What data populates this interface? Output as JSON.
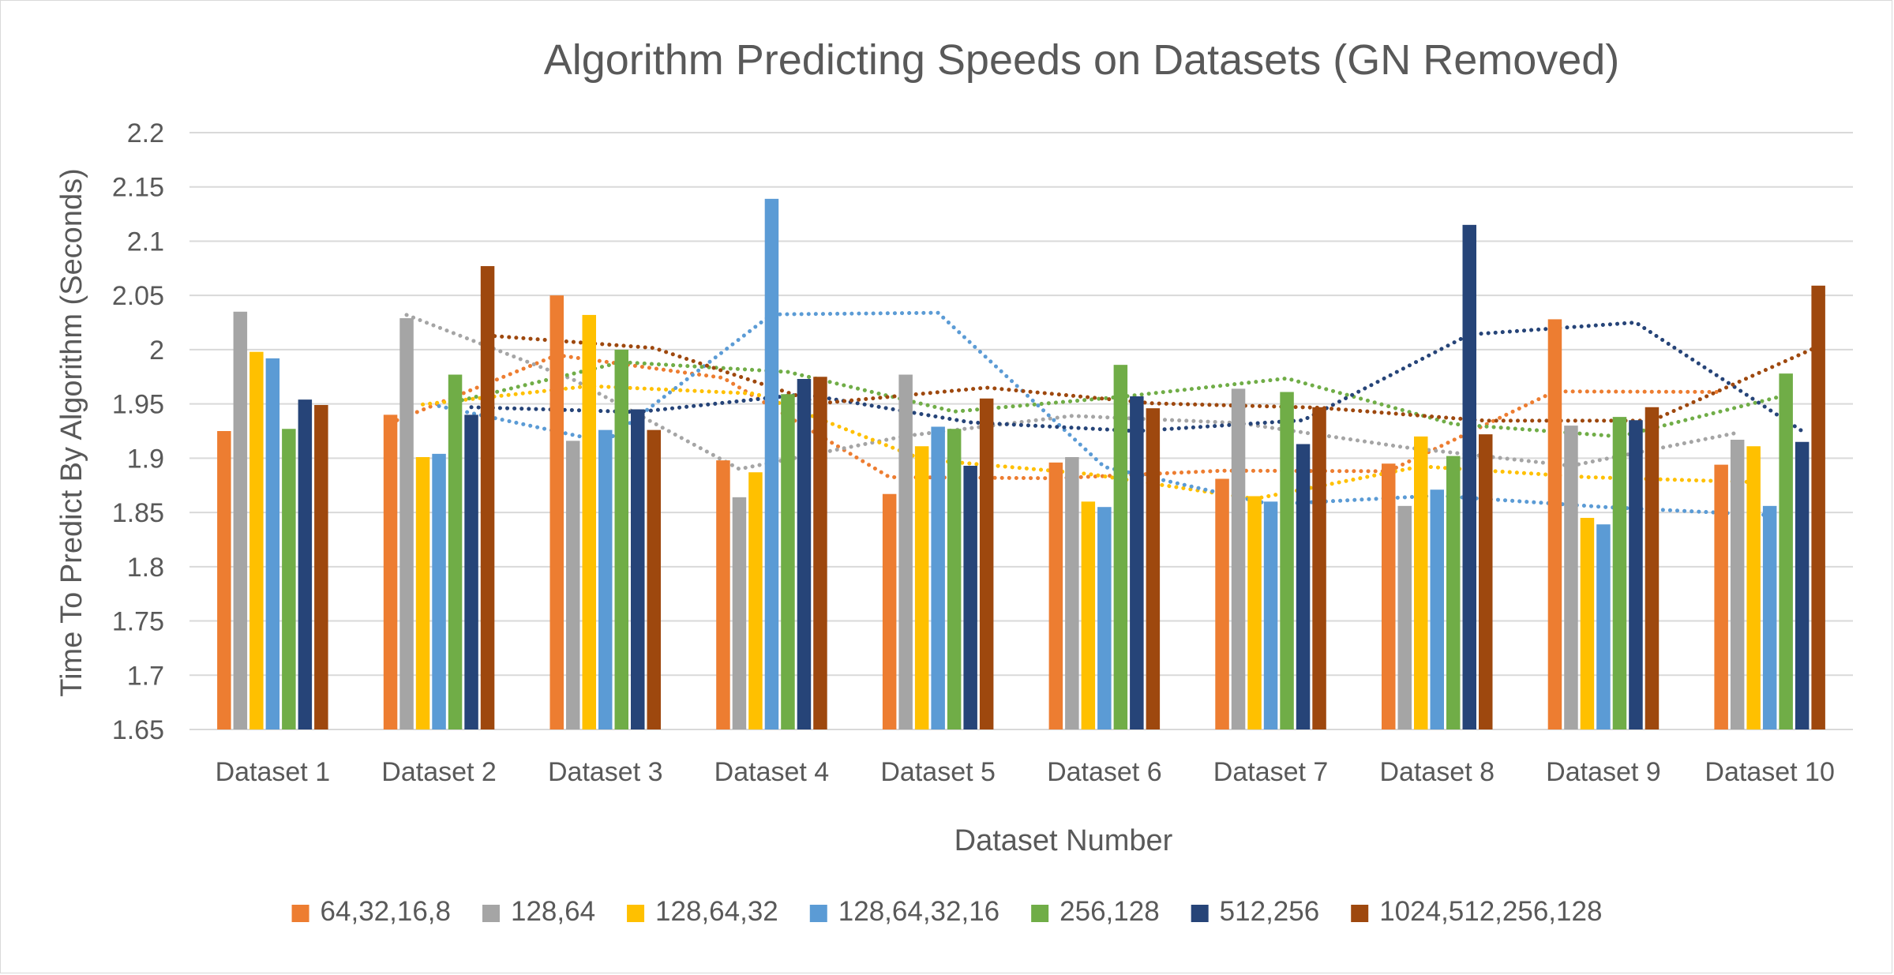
{
  "chart_data": {
    "type": "bar",
    "title": "Algorithm Predicting Speeds on Datasets (GN Removed)",
    "xlabel": "Dataset Number",
    "ylabel": "Time To Predict By Algorithm (Seconds)",
    "ylim": [
      1.65,
      2.2
    ],
    "yticks": [
      "1.65",
      "1.7",
      "1.75",
      "1.8",
      "1.85",
      "1.9",
      "1.95",
      "2",
      "2.05",
      "2.1",
      "2.15",
      "2.2"
    ],
    "grid": true,
    "legend_position": "bottom",
    "trendlines": "dotted moving-average per series",
    "categories": [
      "Dataset 1",
      "Dataset 2",
      "Dataset 3",
      "Dataset 4",
      "Dataset 5",
      "Dataset 6",
      "Dataset 7",
      "Dataset 8",
      "Dataset 9",
      "Dataset 10"
    ],
    "series": [
      {
        "name": "64,32,16,8",
        "color": "#ed7d31",
        "values": [
          1.925,
          1.94,
          2.05,
          1.898,
          1.867,
          1.896,
          1.881,
          1.895,
          2.028,
          1.894
        ]
      },
      {
        "name": "128,64",
        "color": "#a5a5a5",
        "values": [
          2.035,
          2.029,
          1.916,
          1.864,
          1.977,
          1.901,
          1.964,
          1.856,
          1.93,
          1.917
        ]
      },
      {
        "name": "128,64,32",
        "color": "#ffc000",
        "values": [
          1.998,
          1.901,
          2.032,
          1.887,
          1.911,
          1.86,
          1.865,
          1.92,
          1.845,
          1.911
        ]
      },
      {
        "name": "128,64,32,16",
        "color": "#5b9bd5",
        "values": [
          1.992,
          1.904,
          1.926,
          2.139,
          1.929,
          1.855,
          1.86,
          1.871,
          1.839,
          1.856
        ]
      },
      {
        "name": "256,128",
        "color": "#70ad47",
        "values": [
          1.927,
          1.977,
          2.0,
          1.959,
          1.927,
          1.986,
          1.961,
          1.902,
          1.938,
          1.978
        ]
      },
      {
        "name": "512,256",
        "color": "#264478",
        "values": [
          1.954,
          1.94,
          1.945,
          1.973,
          1.893,
          1.957,
          1.913,
          2.115,
          1.935,
          1.915
        ]
      },
      {
        "name": "1024,512,256,128",
        "color": "#9e480e",
        "values": [
          1.949,
          2.077,
          1.926,
          1.975,
          1.955,
          1.946,
          1.947,
          1.922,
          1.947,
          2.059
        ]
      }
    ]
  }
}
